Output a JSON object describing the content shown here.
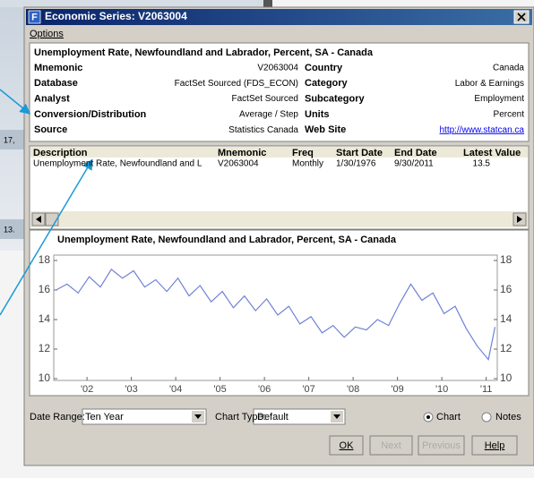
{
  "window": {
    "icon": "F",
    "title": "Economic Series: V2063004"
  },
  "menu": [
    "Options"
  ],
  "background_labels": [
    "17,",
    "13."
  ],
  "info": {
    "heading": "Unemployment Rate, Newfoundland and Labrador, Percent, SA - Canada",
    "rows": [
      [
        "Mnemonic",
        "V2063004",
        "Country",
        "Canada"
      ],
      [
        "Database",
        "FactSet Sourced (FDS_ECON)",
        "Category",
        "Labor & Earnings"
      ],
      [
        "Analyst",
        "FactSet Sourced",
        "Subcategory",
        "Employment"
      ],
      [
        "Conversion/Distribution",
        "Average / Step",
        "Units",
        "Percent"
      ],
      [
        "Source",
        "Statistics Canada",
        "Web Site",
        "http://www.statcan.ca"
      ]
    ]
  },
  "list": {
    "columns": [
      "Description",
      "Mnemonic",
      "Freq",
      "Start Date",
      "End Date",
      "Latest Value"
    ],
    "rows": [
      [
        "Unemployment Rate, Newfoundland and L",
        "V2063004",
        "Monthly",
        "1/30/1976",
        "9/30/2011",
        "13.5"
      ]
    ]
  },
  "chart": {
    "type": "line",
    "title": "Unemployment Rate, Newfoundland and Labrador, Percent, SA - Canada",
    "color": "#6f82d6",
    "x": [
      2001.3,
      2001.55,
      2001.8,
      2002.05,
      2002.3,
      2002.55,
      2002.8,
      2003.05,
      2003.3,
      2003.55,
      2003.8,
      2004.05,
      2004.3,
      2004.55,
      2004.8,
      2005.05,
      2005.3,
      2005.55,
      2005.8,
      2006.05,
      2006.3,
      2006.55,
      2006.8,
      2007.05,
      2007.3,
      2007.55,
      2007.8,
      2008.05,
      2008.3,
      2008.55,
      2008.8,
      2009.05,
      2009.3,
      2009.55,
      2009.8,
      2010.05,
      2010.3,
      2010.55,
      2010.8,
      2011.05,
      2011.2
    ],
    "values": [
      16.0,
      16.4,
      15.8,
      16.9,
      16.2,
      17.4,
      16.8,
      17.3,
      16.2,
      16.7,
      15.9,
      16.8,
      15.6,
      16.3,
      15.2,
      15.9,
      14.8,
      15.6,
      14.6,
      15.4,
      14.3,
      14.9,
      13.7,
      14.2,
      13.1,
      13.6,
      12.8,
      13.5,
      13.3,
      14.0,
      13.6,
      15.1,
      16.4,
      15.3,
      15.8,
      14.4,
      14.9,
      13.4,
      12.2,
      11.3,
      13.5
    ],
    "xlim": [
      2001.25,
      2011.25
    ],
    "xticks": [
      {
        "value": 2002,
        "label": "'02"
      },
      {
        "value": 2003,
        "label": "'03"
      },
      {
        "value": 2004,
        "label": "'04"
      },
      {
        "value": 2005,
        "label": "'05"
      },
      {
        "value": 2006,
        "label": "'06"
      },
      {
        "value": 2007,
        "label": "'07"
      },
      {
        "value": 2008,
        "label": "'08"
      },
      {
        "value": 2009,
        "label": "'09"
      },
      {
        "value": 2010,
        "label": "'10"
      },
      {
        "value": 2011,
        "label": "'11"
      }
    ],
    "ylim": [
      10,
      18
    ],
    "yticks": [
      10,
      12,
      14,
      16,
      18
    ]
  },
  "controls": {
    "date_range_label": "Date Range:",
    "date_range": "Ten Year",
    "chart_type_label": "Chart Type:",
    "chart_type": "Default",
    "radios": [
      "Chart",
      "Notes"
    ],
    "buttons": [
      "OK",
      "Next",
      "Previous",
      "Help"
    ]
  }
}
